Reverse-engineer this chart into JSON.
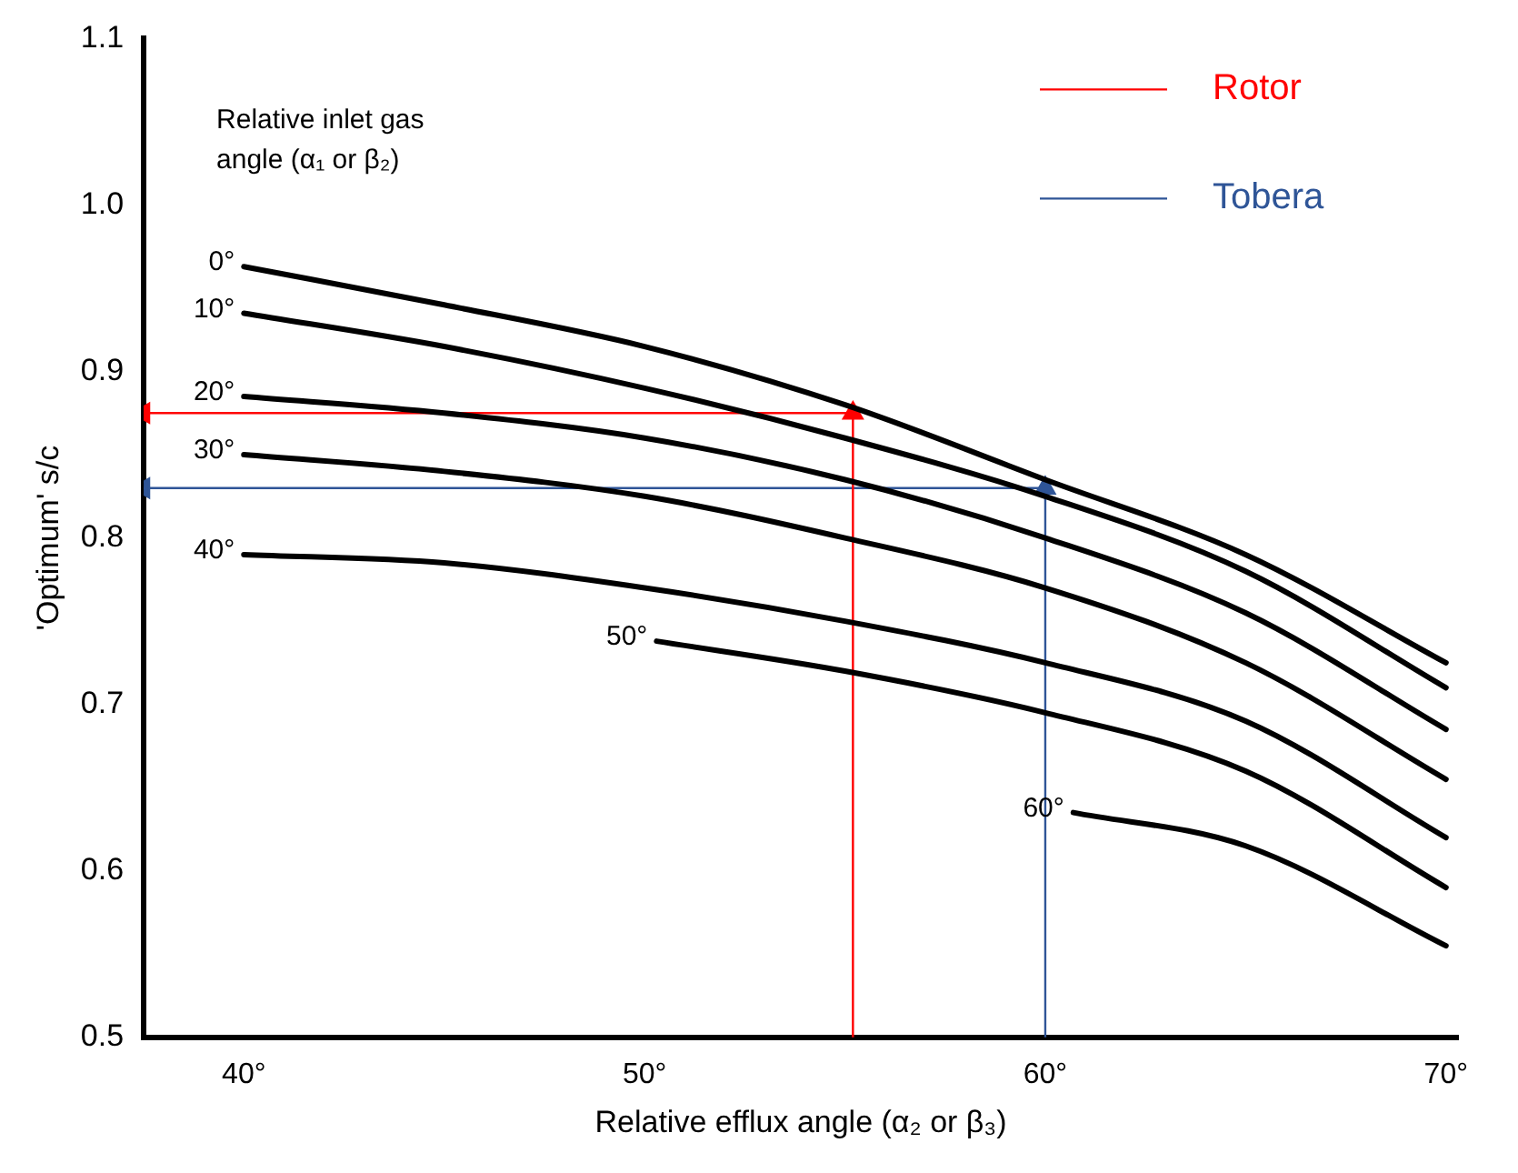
{
  "chart_data": {
    "type": "line",
    "xlabel": "Relative efflux angle (α₂ or β₃)",
    "ylabel": "'Optimum' s/c",
    "legend_title": "Relative inlet gas angle (α₁ or β₂)",
    "xlim": [
      37.5,
      70.3
    ],
    "xticks": [
      {
        "value": 40,
        "label": "40°"
      },
      {
        "value": 50,
        "label": "50°"
      },
      {
        "value": 60,
        "label": "60°"
      },
      {
        "value": 70,
        "label": "70°"
      }
    ],
    "ylim": [
      0.5,
      1.1
    ],
    "yticks": [
      0.5,
      0.6,
      0.7,
      0.8,
      0.9,
      {
        "value": 1.0,
        "label": "1.0"
      },
      1.1
    ],
    "grid": false,
    "legend": "top right",
    "marker": "none",
    "line_style": "solid",
    "series": [
      {
        "name": "0°",
        "color": "#000000",
        "x": [
          40,
          45,
          50,
          55,
          60,
          65,
          70
        ],
        "values": [
          0.963,
          0.94,
          0.915,
          0.88,
          0.835,
          0.79,
          0.725
        ]
      },
      {
        "name": "10°",
        "color": "#000000",
        "x": [
          40,
          45,
          50,
          55,
          60,
          65,
          70
        ],
        "values": [
          0.935,
          0.915,
          0.89,
          0.86,
          0.825,
          0.78,
          0.71
        ]
      },
      {
        "name": "20°",
        "color": "#000000",
        "x": [
          40,
          45,
          50,
          55,
          60,
          65,
          70
        ],
        "values": [
          0.885,
          0.875,
          0.86,
          0.835,
          0.8,
          0.755,
          0.685
        ]
      },
      {
        "name": "30°",
        "color": "#000000",
        "x": [
          40,
          45,
          50,
          55,
          60,
          65,
          70
        ],
        "values": [
          0.85,
          0.84,
          0.825,
          0.8,
          0.77,
          0.725,
          0.655
        ]
      },
      {
        "name": "40°",
        "color": "#000000",
        "x": [
          40,
          45,
          50,
          55,
          60,
          65,
          70
        ],
        "values": [
          0.79,
          0.785,
          0.77,
          0.75,
          0.725,
          0.69,
          0.62
        ]
      },
      {
        "name": "50°",
        "color": "#000000",
        "x": [
          50.3,
          55,
          60,
          65,
          70
        ],
        "values": [
          0.738,
          0.72,
          0.695,
          0.66,
          0.59
        ]
      },
      {
        "name": "60°",
        "color": "#000000",
        "x": [
          60.7,
          65,
          70
        ],
        "values": [
          0.635,
          0.615,
          0.555
        ]
      },
      {
        "name": "Rotor",
        "color": "#ff0000",
        "x": [
          55.2,
          55.2,
          37.5
        ],
        "values": [
          0.5,
          0.875,
          0.875
        ],
        "marker": "triangle"
      },
      {
        "name": "Tobera",
        "color": "#2f5597",
        "x": [
          60,
          60,
          37.5
        ],
        "values": [
          0.5,
          0.83,
          0.83
        ],
        "marker": "triangle"
      }
    ]
  }
}
